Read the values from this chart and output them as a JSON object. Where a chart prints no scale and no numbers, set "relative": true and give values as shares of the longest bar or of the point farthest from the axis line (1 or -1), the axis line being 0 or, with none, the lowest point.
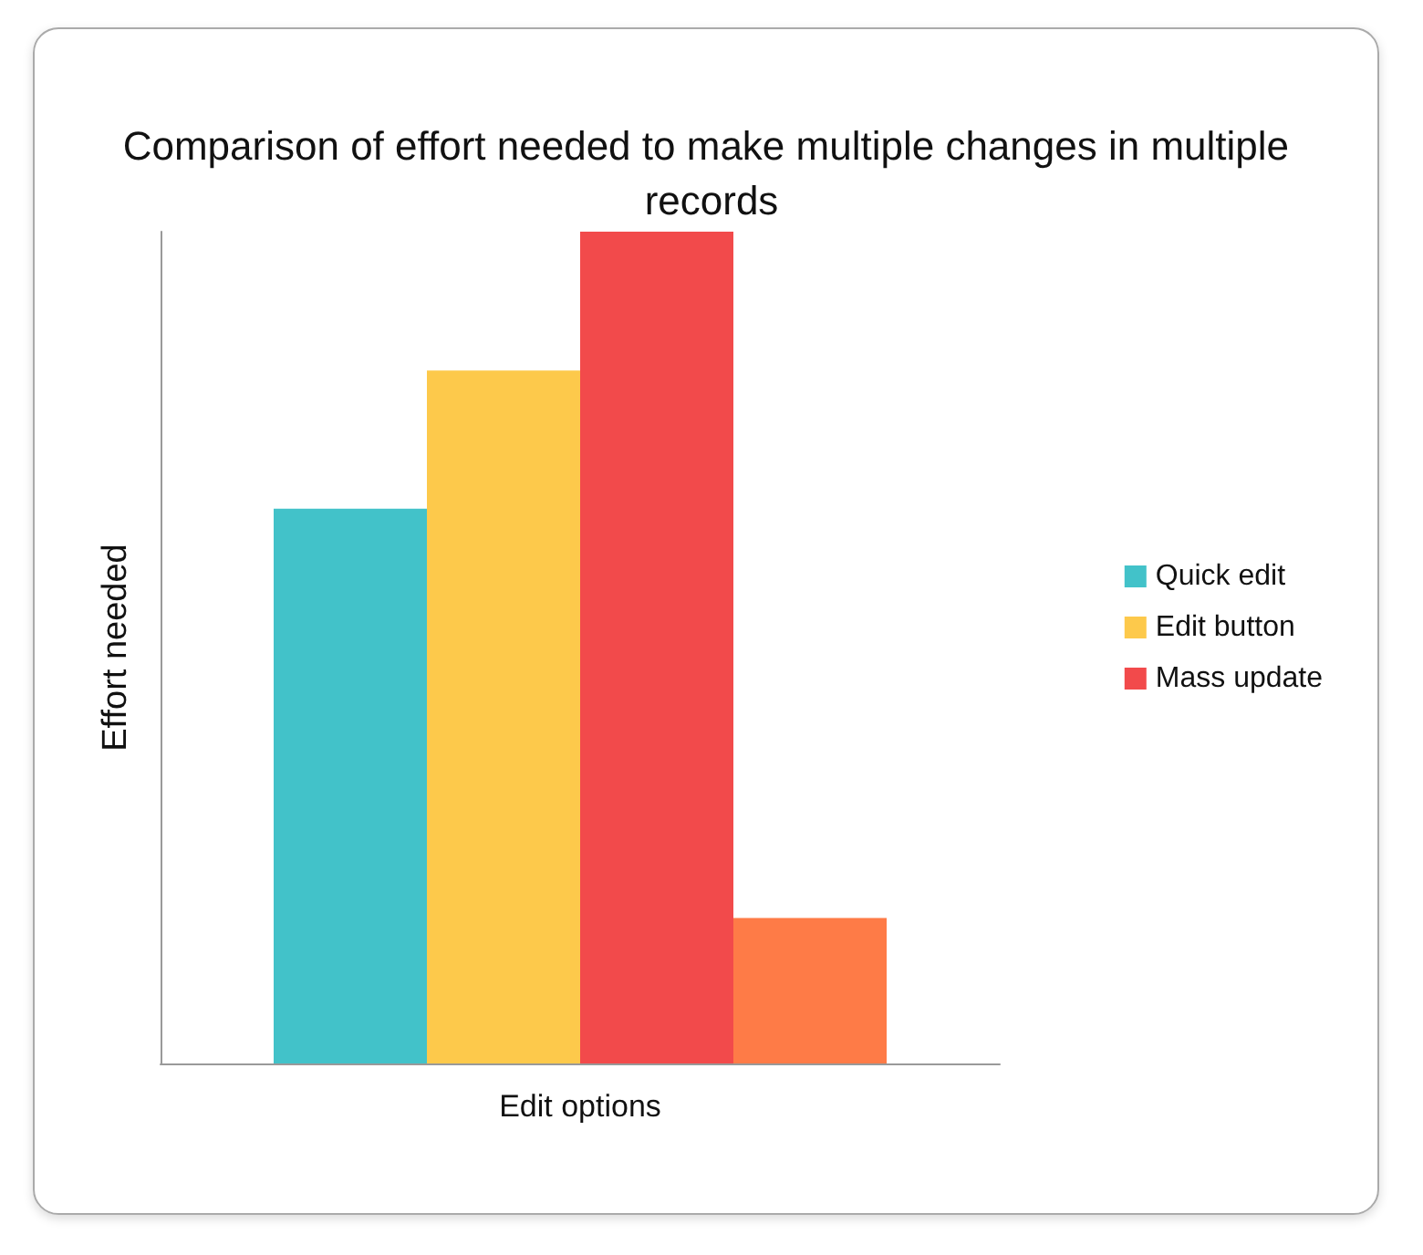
{
  "chart_data": {
    "type": "bar",
    "title": "Comparison of effort needed to make multiple changes in multiple records",
    "xlabel": "Edit options",
    "ylabel": "Effort needed",
    "relative": true,
    "categories": [
      null
    ],
    "series": [
      {
        "name": "Quick edit",
        "color": "#42c2c9",
        "values": [
          0.667
        ]
      },
      {
        "name": "Edit button",
        "color": "#fdc94b",
        "values": [
          0.833
        ]
      },
      {
        "name": "Mass update",
        "color": "#f24a4b",
        "values": [
          1
        ]
      },
      {
        "color": "#fe7b47",
        "values": [
          0.175
        ]
      }
    ],
    "grid": false,
    "legend": "right"
  }
}
